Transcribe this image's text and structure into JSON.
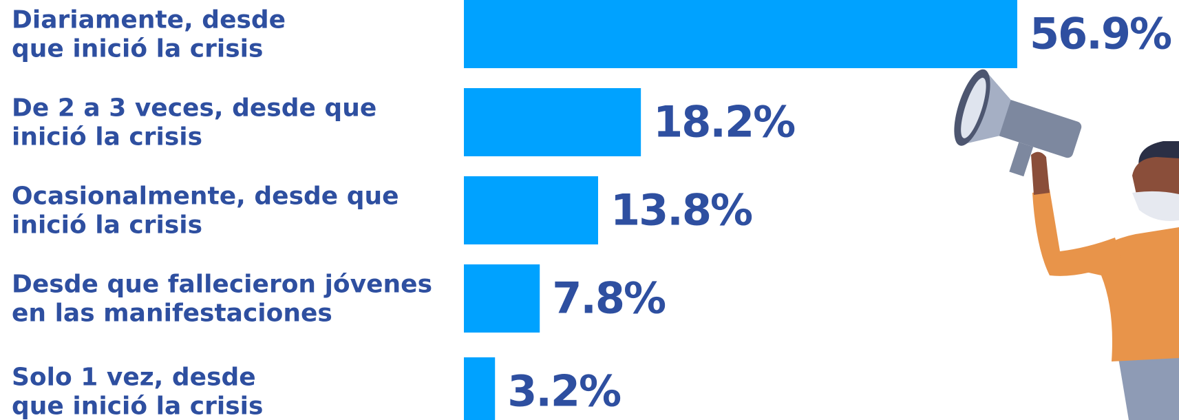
{
  "chart_data": {
    "type": "bar",
    "orientation": "horizontal",
    "categories": [
      "Diariamente, desde\nque inició la crisis",
      "De 2 a 3 veces, desde que\ninició la crisis",
      "Ocasionalmente, desde que\ninició la crisis",
      "Desde que fallecieron jóvenes\nen las manifestaciones",
      "Solo 1 vez, desde\nque inició la crisis"
    ],
    "values": [
      56.9,
      18.2,
      13.8,
      7.8,
      3.2
    ],
    "value_labels": [
      "56.9%",
      "18.2%",
      "13.8%",
      "7.8%",
      "3.2%"
    ],
    "color": "#00a2ff"
  }
}
